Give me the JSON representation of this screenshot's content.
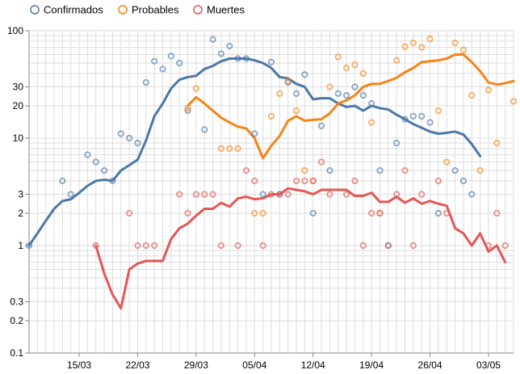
{
  "chart_data": {
    "type": "line",
    "title": "",
    "xlabel": "",
    "ylabel": "",
    "y_scale": "log",
    "ylim": [
      0.1,
      100
    ],
    "xlim": [
      "2020-03-09",
      "2020-05-06"
    ],
    "grid": true,
    "legend_position": "top-left",
    "y_ticks": [
      {
        "value": 0.1,
        "label": "0.1"
      },
      {
        "value": 0.2,
        "label": "0.2"
      },
      {
        "value": 0.3,
        "label": "0.3"
      },
      {
        "value": 1,
        "label": "1"
      },
      {
        "value": 2,
        "label": "2"
      },
      {
        "value": 3,
        "label": "3"
      },
      {
        "value": 10,
        "label": "10"
      },
      {
        "value": 20,
        "label": "20"
      },
      {
        "value": 30,
        "label": "30"
      },
      {
        "value": 100,
        "label": "100"
      }
    ],
    "x_ticks": [
      {
        "date": "2020-03-15",
        "label": "15/03"
      },
      {
        "date": "2020-03-22",
        "label": "22/03"
      },
      {
        "date": "2020-03-29",
        "label": "29/03"
      },
      {
        "date": "2020-04-05",
        "label": "05/04"
      },
      {
        "date": "2020-04-12",
        "label": "12/04"
      },
      {
        "date": "2020-04-19",
        "label": "19/04"
      },
      {
        "date": "2020-04-26",
        "label": "26/04"
      },
      {
        "date": "2020-05-03",
        "label": "03/05"
      }
    ],
    "series": [
      {
        "name": "Confirmados",
        "color": "#4c78a8",
        "points": [
          [
            "2020-03-09",
            1
          ],
          [
            "2020-03-13",
            4
          ],
          [
            "2020-03-14",
            3
          ],
          [
            "2020-03-16",
            7
          ],
          [
            "2020-03-17",
            6
          ],
          [
            "2020-03-18",
            5
          ],
          [
            "2020-03-19",
            4
          ],
          [
            "2020-03-20",
            11
          ],
          [
            "2020-03-21",
            10
          ],
          [
            "2020-03-22",
            9
          ],
          [
            "2020-03-23",
            33
          ],
          [
            "2020-03-24",
            52
          ],
          [
            "2020-03-25",
            44
          ],
          [
            "2020-03-26",
            58
          ],
          [
            "2020-03-27",
            50
          ],
          [
            "2020-03-28",
            18
          ],
          [
            "2020-03-30",
            12
          ],
          [
            "2020-03-31",
            83
          ],
          [
            "2020-04-01",
            61
          ],
          [
            "2020-04-02",
            72
          ],
          [
            "2020-04-03",
            55
          ],
          [
            "2020-04-04",
            55
          ],
          [
            "2020-04-05",
            11
          ],
          [
            "2020-04-06",
            3
          ],
          [
            "2020-04-07",
            51
          ],
          [
            "2020-04-08",
            3
          ],
          [
            "2020-04-09",
            33
          ],
          [
            "2020-04-10",
            26
          ],
          [
            "2020-04-11",
            39
          ],
          [
            "2020-04-12",
            2
          ],
          [
            "2020-04-13",
            13
          ],
          [
            "2020-04-14",
            5
          ],
          [
            "2020-04-15",
            26
          ],
          [
            "2020-04-16",
            25
          ],
          [
            "2020-04-17",
            30
          ],
          [
            "2020-04-18",
            25
          ],
          [
            "2020-04-19",
            21
          ],
          [
            "2020-04-20",
            5
          ],
          [
            "2020-04-21",
            1
          ],
          [
            "2020-04-22",
            9
          ],
          [
            "2020-04-23",
            15
          ],
          [
            "2020-04-24",
            16
          ],
          [
            "2020-04-25",
            16
          ],
          [
            "2020-04-26",
            14
          ],
          [
            "2020-04-27",
            2
          ],
          [
            "2020-04-29",
            5
          ],
          [
            "2020-04-30",
            4
          ],
          [
            "2020-05-01",
            3
          ]
        ],
        "moving_average": [
          [
            "2020-03-09",
            1
          ],
          [
            "2020-03-10",
            1.3
          ],
          [
            "2020-03-11",
            1.7
          ],
          [
            "2020-03-12",
            2.2
          ],
          [
            "2020-03-13",
            2.6
          ],
          [
            "2020-03-14",
            2.7
          ],
          [
            "2020-03-15",
            3.1
          ],
          [
            "2020-03-16",
            3.6
          ],
          [
            "2020-03-17",
            4.0
          ],
          [
            "2020-03-18",
            4.1
          ],
          [
            "2020-03-19",
            4.0
          ],
          [
            "2020-03-20",
            5.0
          ],
          [
            "2020-03-21",
            5.6
          ],
          [
            "2020-03-22",
            6.3
          ],
          [
            "2020-03-23",
            9.5
          ],
          [
            "2020-03-24",
            16
          ],
          [
            "2020-03-25",
            21
          ],
          [
            "2020-03-26",
            29
          ],
          [
            "2020-03-27",
            35
          ],
          [
            "2020-03-28",
            37
          ],
          [
            "2020-03-29",
            38
          ],
          [
            "2020-03-30",
            44
          ],
          [
            "2020-03-31",
            47
          ],
          [
            "2020-04-01",
            52
          ],
          [
            "2020-04-02",
            55
          ],
          [
            "2020-04-03",
            55
          ],
          [
            "2020-04-04",
            55
          ],
          [
            "2020-04-05",
            53
          ],
          [
            "2020-04-06",
            50
          ],
          [
            "2020-04-07",
            45
          ],
          [
            "2020-04-08",
            37
          ],
          [
            "2020-04-09",
            36
          ],
          [
            "2020-04-10",
            32
          ],
          [
            "2020-04-11",
            30
          ],
          [
            "2020-04-12",
            23
          ],
          [
            "2020-04-13",
            23.5
          ],
          [
            "2020-04-14",
            23.5
          ],
          [
            "2020-04-15",
            21
          ],
          [
            "2020-04-16",
            19.5
          ],
          [
            "2020-04-17",
            20
          ],
          [
            "2020-04-18",
            18
          ],
          [
            "2020-04-19",
            20
          ],
          [
            "2020-04-20",
            19
          ],
          [
            "2020-04-21",
            18.5
          ],
          [
            "2020-04-22",
            16.5
          ],
          [
            "2020-04-23",
            15
          ],
          [
            "2020-04-24",
            13.5
          ],
          [
            "2020-04-25",
            12.5
          ],
          [
            "2020-04-26",
            11.5
          ],
          [
            "2020-04-27",
            11
          ],
          [
            "2020-04-28",
            11.2
          ],
          [
            "2020-04-29",
            11.5
          ],
          [
            "2020-04-30",
            10.8
          ],
          [
            "2020-05-01",
            8.8
          ],
          [
            "2020-05-02",
            6.8
          ]
        ]
      },
      {
        "name": "Probables",
        "color": "#f58518",
        "points": [
          [
            "2020-03-28",
            19
          ],
          [
            "2020-03-29",
            29
          ],
          [
            "2020-04-01",
            8
          ],
          [
            "2020-04-02",
            8
          ],
          [
            "2020-04-03",
            8
          ],
          [
            "2020-04-05",
            2
          ],
          [
            "2020-04-06",
            2
          ],
          [
            "2020-04-07",
            16
          ],
          [
            "2020-04-08",
            26
          ],
          [
            "2020-04-09",
            34
          ],
          [
            "2020-04-10",
            18
          ],
          [
            "2020-04-11",
            5
          ],
          [
            "2020-04-12",
            4
          ],
          [
            "2020-04-14",
            30
          ],
          [
            "2020-04-15",
            57
          ],
          [
            "2020-04-16",
            45
          ],
          [
            "2020-04-17",
            48
          ],
          [
            "2020-04-18",
            40
          ],
          [
            "2020-04-19",
            14
          ],
          [
            "2020-04-20",
            2
          ],
          [
            "2020-04-22",
            53
          ],
          [
            "2020-04-23",
            71
          ],
          [
            "2020-04-24",
            77
          ],
          [
            "2020-04-25",
            70
          ],
          [
            "2020-04-26",
            84
          ],
          [
            "2020-04-27",
            18
          ],
          [
            "2020-04-28",
            6
          ],
          [
            "2020-04-29",
            77
          ],
          [
            "2020-04-30",
            66
          ],
          [
            "2020-05-01",
            25
          ],
          [
            "2020-05-02",
            5
          ],
          [
            "2020-05-03",
            28
          ],
          [
            "2020-05-04",
            9
          ],
          [
            "2020-05-06",
            22
          ]
        ],
        "moving_average": [
          [
            "2020-03-28",
            20
          ],
          [
            "2020-03-29",
            24
          ],
          [
            "2020-03-30",
            21
          ],
          [
            "2020-03-31",
            18
          ],
          [
            "2020-04-01",
            15.5
          ],
          [
            "2020-04-02",
            14
          ],
          [
            "2020-04-03",
            12.8
          ],
          [
            "2020-04-04",
            12.3
          ],
          [
            "2020-04-05",
            10
          ],
          [
            "2020-04-06",
            6.5
          ],
          [
            "2020-04-07",
            8.5
          ],
          [
            "2020-04-08",
            10.5
          ],
          [
            "2020-04-09",
            14.5
          ],
          [
            "2020-04-10",
            16
          ],
          [
            "2020-04-11",
            14.5
          ],
          [
            "2020-04-12",
            14.8
          ],
          [
            "2020-04-13",
            15
          ],
          [
            "2020-04-14",
            17
          ],
          [
            "2020-04-15",
            21
          ],
          [
            "2020-04-16",
            22.5
          ],
          [
            "2020-04-17",
            25
          ],
          [
            "2020-04-18",
            30
          ],
          [
            "2020-04-19",
            32
          ],
          [
            "2020-04-20",
            32
          ],
          [
            "2020-04-21",
            34
          ],
          [
            "2020-04-22",
            36.5
          ],
          [
            "2020-04-23",
            41
          ],
          [
            "2020-04-24",
            45
          ],
          [
            "2020-04-25",
            51
          ],
          [
            "2020-04-26",
            52
          ],
          [
            "2020-04-27",
            53
          ],
          [
            "2020-04-28",
            55
          ],
          [
            "2020-04-29",
            60
          ],
          [
            "2020-04-30",
            60
          ],
          [
            "2020-05-01",
            51
          ],
          [
            "2020-05-02",
            42
          ],
          [
            "2020-05-03",
            33
          ],
          [
            "2020-05-04",
            31.5
          ],
          [
            "2020-05-05",
            32.5
          ],
          [
            "2020-05-06",
            34
          ]
        ]
      },
      {
        "name": "Muertes",
        "color": "#e45756",
        "points": [
          [
            "2020-03-17",
            1
          ],
          [
            "2020-03-21",
            2
          ],
          [
            "2020-03-22",
            1
          ],
          [
            "2020-03-23",
            1
          ],
          [
            "2020-03-24",
            1
          ],
          [
            "2020-03-27",
            3
          ],
          [
            "2020-03-28",
            2
          ],
          [
            "2020-03-29",
            3
          ],
          [
            "2020-03-30",
            3
          ],
          [
            "2020-03-31",
            3
          ],
          [
            "2020-04-01",
            1
          ],
          [
            "2020-04-03",
            1
          ],
          [
            "2020-04-04",
            5
          ],
          [
            "2020-04-05",
            4
          ],
          [
            "2020-04-06",
            1
          ],
          [
            "2020-04-07",
            3
          ],
          [
            "2020-04-08",
            3
          ],
          [
            "2020-04-09",
            3
          ],
          [
            "2020-04-10",
            4
          ],
          [
            "2020-04-11",
            4
          ],
          [
            "2020-04-12",
            4
          ],
          [
            "2020-04-13",
            6
          ],
          [
            "2020-04-14",
            3
          ],
          [
            "2020-04-16",
            3
          ],
          [
            "2020-04-17",
            4
          ],
          [
            "2020-04-18",
            1
          ],
          [
            "2020-04-19",
            2
          ],
          [
            "2020-04-20",
            2
          ],
          [
            "2020-04-21",
            1
          ],
          [
            "2020-04-22",
            3
          ],
          [
            "2020-04-23",
            5
          ],
          [
            "2020-04-24",
            1
          ],
          [
            "2020-04-25",
            3
          ],
          [
            "2020-04-27",
            4
          ],
          [
            "2020-04-28",
            2
          ],
          [
            "2020-05-03",
            1
          ],
          [
            "2020-05-04",
            2
          ],
          [
            "2020-05-05",
            1
          ]
        ],
        "moving_average": [
          [
            "2020-03-17",
            1
          ],
          [
            "2020-03-18",
            0.55
          ],
          [
            "2020-03-19",
            0.35
          ],
          [
            "2020-03-20",
            0.26
          ],
          [
            "2020-03-21",
            0.6
          ],
          [
            "2020-03-22",
            0.68
          ],
          [
            "2020-03-23",
            0.72
          ],
          [
            "2020-03-24",
            0.72
          ],
          [
            "2020-03-25",
            0.72
          ],
          [
            "2020-03-26",
            1.15
          ],
          [
            "2020-03-27",
            1.45
          ],
          [
            "2020-03-28",
            1.6
          ],
          [
            "2020-03-29",
            1.9
          ],
          [
            "2020-03-30",
            2.2
          ],
          [
            "2020-03-31",
            2.2
          ],
          [
            "2020-04-01",
            2.5
          ],
          [
            "2020-04-02",
            2.3
          ],
          [
            "2020-04-03",
            2.75
          ],
          [
            "2020-04-04",
            2.85
          ],
          [
            "2020-04-05",
            2.7
          ],
          [
            "2020-04-06",
            2.75
          ],
          [
            "2020-04-07",
            3.0
          ],
          [
            "2020-04-08",
            3.0
          ],
          [
            "2020-04-09",
            3.4
          ],
          [
            "2020-04-10",
            3.3
          ],
          [
            "2020-04-11",
            3.2
          ],
          [
            "2020-04-12",
            3.0
          ],
          [
            "2020-04-13",
            3.3
          ],
          [
            "2020-04-14",
            3.3
          ],
          [
            "2020-04-15",
            3.3
          ],
          [
            "2020-04-16",
            3.3
          ],
          [
            "2020-04-17",
            2.9
          ],
          [
            "2020-04-18",
            2.9
          ],
          [
            "2020-04-19",
            3.1
          ],
          [
            "2020-04-20",
            2.55
          ],
          [
            "2020-04-21",
            2.55
          ],
          [
            "2020-04-22",
            2.85
          ],
          [
            "2020-04-23",
            2.5
          ],
          [
            "2020-04-24",
            2.75
          ],
          [
            "2020-04-25",
            2.45
          ],
          [
            "2020-04-26",
            2.6
          ],
          [
            "2020-04-27",
            2.45
          ],
          [
            "2020-04-28",
            2.35
          ],
          [
            "2020-04-29",
            1.45
          ],
          [
            "2020-04-30",
            1.3
          ],
          [
            "2020-05-01",
            1.0
          ],
          [
            "2020-05-02",
            1.3
          ],
          [
            "2020-05-03",
            0.88
          ],
          [
            "2020-05-04",
            1.0
          ],
          [
            "2020-05-05",
            0.7
          ]
        ]
      }
    ]
  }
}
